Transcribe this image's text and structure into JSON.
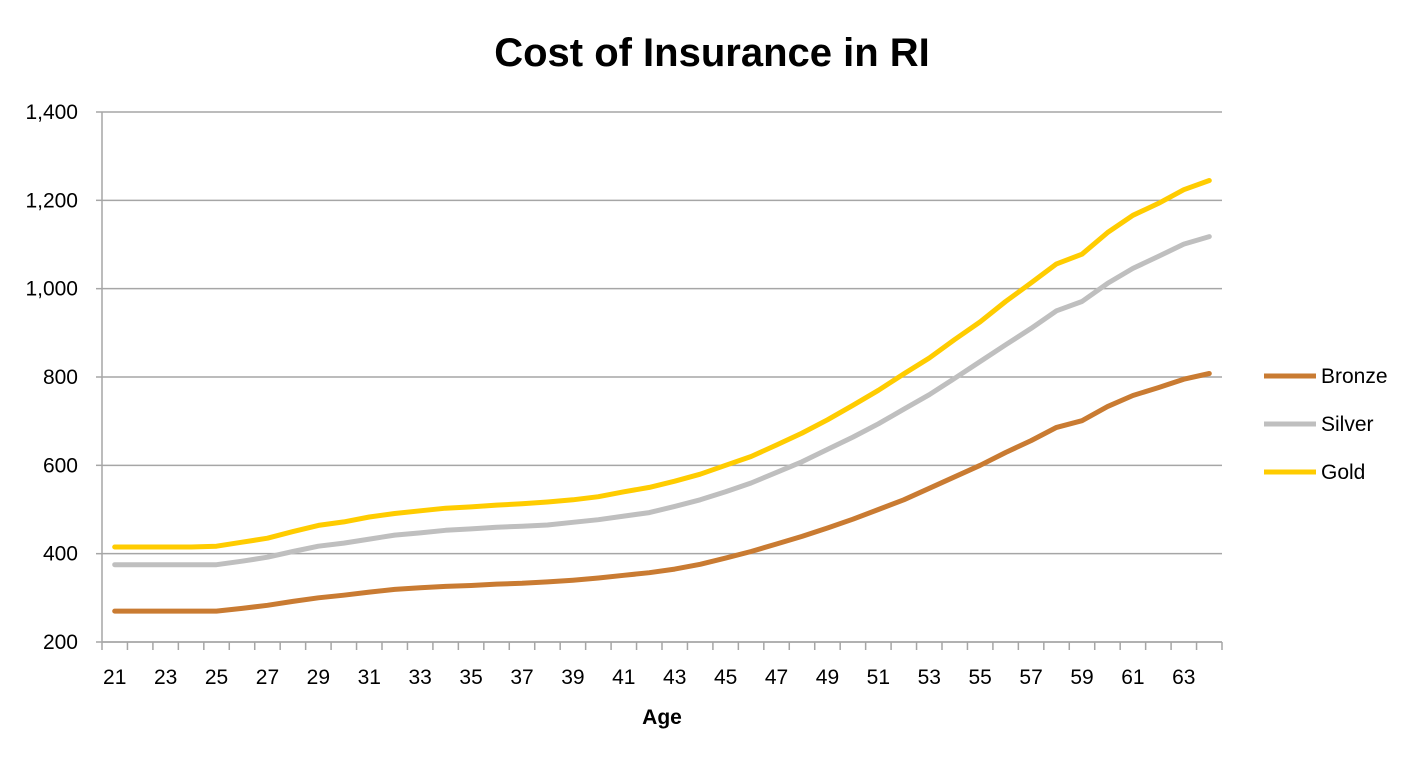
{
  "chart_data": {
    "type": "line",
    "title": "Cost of Insurance in RI",
    "xlabel": "Age",
    "ylabel": "",
    "ylim": [
      200,
      1400
    ],
    "yticks": [
      200,
      400,
      600,
      800,
      1000,
      1200,
      1400
    ],
    "ytick_labels": [
      "200",
      "400",
      "600",
      "800",
      "1,000",
      "1,200",
      "1,400"
    ],
    "xtick_labels": [
      "21",
      "23",
      "25",
      "27",
      "29",
      "31",
      "33",
      "35",
      "37",
      "39",
      "41",
      "43",
      "45",
      "47",
      "49",
      "51",
      "53",
      "55",
      "57",
      "59",
      "61",
      "63"
    ],
    "grid": "horizontal",
    "legend": "right",
    "x": [
      21,
      22,
      23,
      24,
      25,
      26,
      27,
      28,
      29,
      30,
      31,
      32,
      33,
      34,
      35,
      36,
      37,
      38,
      39,
      40,
      41,
      42,
      43,
      44,
      45,
      46,
      47,
      48,
      49,
      50,
      51,
      52,
      53,
      54,
      55,
      56,
      57,
      58,
      59,
      60,
      61,
      62,
      63,
      64
    ],
    "series": [
      {
        "name": "Bronze",
        "color": "#C97B32",
        "values": [
          270,
          270,
          270,
          270,
          270,
          276,
          283,
          292,
          300,
          306,
          313,
          319,
          323,
          326,
          328,
          331,
          333,
          336,
          340,
          345,
          351,
          357,
          365,
          376,
          390,
          405,
          422,
          439,
          458,
          478,
          500,
          522,
          548,
          574,
          600,
          629,
          656,
          686,
          701,
          733,
          758,
          776,
          795,
          808
        ]
      },
      {
        "name": "Silver",
        "color": "#BFBFBF",
        "values": [
          375,
          375,
          375,
          375,
          375,
          383,
          392,
          405,
          417,
          424,
          433,
          442,
          447,
          453,
          456,
          460,
          462,
          465,
          471,
          477,
          485,
          493,
          507,
          522,
          540,
          560,
          584,
          608,
          636,
          664,
          694,
          727,
          760,
          797,
          835,
          873,
          910,
          950,
          971,
          1012,
          1046,
          1073,
          1101,
          1118
        ]
      },
      {
        "name": "Gold",
        "color": "#FFCC00",
        "values": [
          415,
          415,
          415,
          415,
          417,
          426,
          435,
          450,
          464,
          472,
          483,
          491,
          497,
          503,
          506,
          510,
          513,
          517,
          522,
          529,
          540,
          550,
          564,
          580,
          600,
          620,
          646,
          673,
          703,
          736,
          770,
          807,
          843,
          885,
          925,
          971,
          1013,
          1056,
          1078,
          1127,
          1166,
          1193,
          1224,
          1245
        ]
      }
    ]
  }
}
